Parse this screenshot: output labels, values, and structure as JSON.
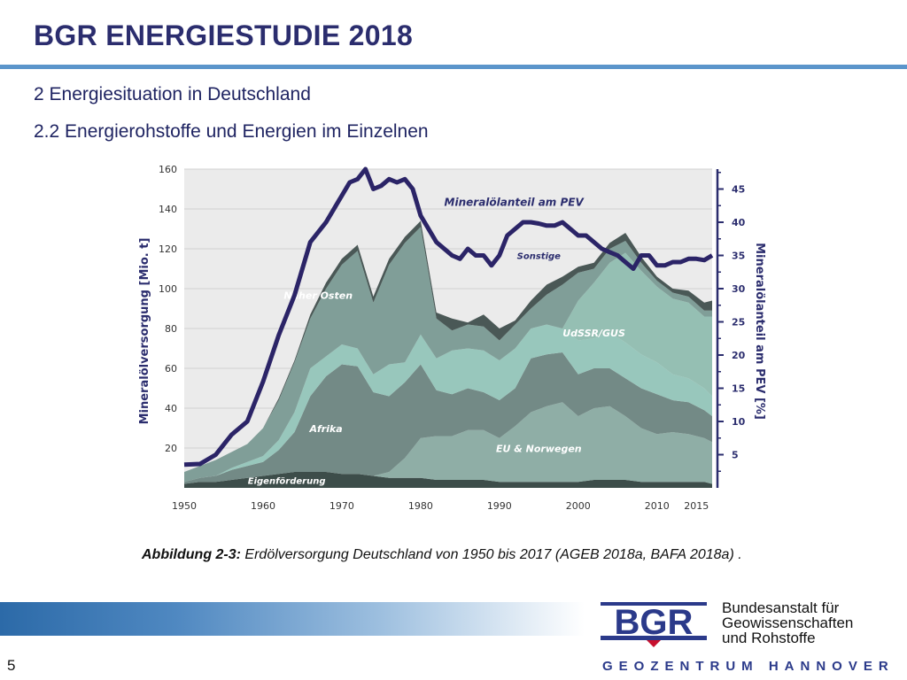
{
  "slide": {
    "title": "BGR ENERGIESTUDIE 2018",
    "heading1": "2 Energiesituation in Deutschland",
    "heading2": "2.2 Energierohstoffe und Energien im Einzelnen",
    "caption_bold": "Abbildung 2-3:",
    "caption_text": " Erdölversorgung Deutschland von 1950 bis 2017 (AGEB 2018a, BAFA 2018a) .",
    "page_number": "5"
  },
  "footer": {
    "logo_text": "BGR",
    "org_line1": "Bundesanstalt für",
    "org_line2": "Geowissenschaften",
    "org_line3": "und Rohstoffe",
    "geozentrum": "GEOZENTRUM HANNOVER"
  },
  "colors": {
    "title": "#2b2d6e",
    "rule": "#5b95cb",
    "line": "#2b2467",
    "axis_text": "#2b2d6e",
    "plot_bg": "#ebebeb"
  },
  "chart_data": {
    "type": "area",
    "stacked": true,
    "x": [
      1950,
      1952,
      1954,
      1956,
      1958,
      1960,
      1962,
      1964,
      1966,
      1968,
      1970,
      1972,
      1974,
      1976,
      1978,
      1980,
      1982,
      1984,
      1986,
      1988,
      1990,
      1992,
      1994,
      1996,
      1998,
      2000,
      2002,
      2004,
      2006,
      2008,
      2010,
      2012,
      2014,
      2016,
      2017
    ],
    "ylabel": "Mineralölversorgung [Mio. t]",
    "ylim": [
      0,
      160
    ],
    "yticks": [
      20,
      40,
      60,
      80,
      100,
      120,
      140,
      160
    ],
    "xticks": [
      "1950",
      "1960",
      "1970",
      "1980",
      "1990",
      "2000",
      "2010",
      "2015"
    ],
    "xtick_values": [
      1950,
      1960,
      1970,
      1980,
      1990,
      2000,
      2010,
      2015
    ],
    "series": [
      {
        "name": "Eigenförderung",
        "color": "#3d4d4a",
        "values": [
          2,
          3,
          3,
          4,
          5,
          6,
          7,
          8,
          8,
          8,
          7,
          7,
          6,
          5,
          5,
          5,
          4,
          4,
          4,
          4,
          3,
          3,
          3,
          3,
          3,
          3,
          4,
          4,
          4,
          3,
          3,
          3,
          3,
          3,
          2
        ]
      },
      {
        "name": "EU & Norwegen",
        "color": "#8faea6",
        "values": [
          0,
          0,
          0,
          0,
          0,
          0,
          0,
          0,
          0,
          0,
          0,
          0,
          0,
          3,
          10,
          20,
          22,
          22,
          25,
          25,
          22,
          28,
          35,
          38,
          40,
          33,
          36,
          37,
          32,
          27,
          24,
          25,
          24,
          22,
          21
        ]
      },
      {
        "name": "Afrika",
        "color": "#738a86",
        "values": [
          1,
          2,
          3,
          5,
          6,
          7,
          12,
          20,
          38,
          48,
          55,
          54,
          42,
          38,
          38,
          37,
          23,
          21,
          21,
          19,
          19,
          19,
          27,
          26,
          25,
          21,
          20,
          19,
          19,
          20,
          20,
          16,
          16,
          14,
          13
        ]
      },
      {
        "name": "",
        "color": "#98c7bc",
        "values": [
          0,
          0,
          0,
          1,
          2,
          3,
          5,
          10,
          14,
          10,
          10,
          9,
          9,
          16,
          10,
          15,
          16,
          22,
          20,
          21,
          20,
          20,
          15,
          15,
          12,
          17,
          15,
          18,
          18,
          17,
          16,
          13,
          12,
          11,
          10
        ]
      },
      {
        "name": "UdSSR/GUS",
        "color": "#95bfb3",
        "values": [
          0,
          0,
          0,
          0,
          0,
          0,
          0,
          0,
          0,
          0,
          0,
          0,
          0,
          0,
          0,
          0,
          0,
          0,
          0,
          0,
          0,
          0,
          0,
          0,
          0,
          20,
          28,
          35,
          45,
          42,
          38,
          38,
          38,
          36,
          40
        ]
      },
      {
        "name": "Naher Osten",
        "color": "#809e98",
        "values": [
          5,
          6,
          8,
          8,
          9,
          14,
          20,
          25,
          25,
          34,
          40,
          49,
          36,
          50,
          60,
          54,
          20,
          10,
          12,
          12,
          10,
          12,
          10,
          15,
          22,
          14,
          7,
          7,
          6,
          4,
          3,
          3,
          3,
          3,
          3
        ]
      },
      {
        "name": "Sonstige",
        "color": "#4a5856",
        "values": [
          0,
          0,
          0,
          0,
          0,
          0,
          1,
          1,
          2,
          3,
          3,
          3,
          3,
          3,
          3,
          3,
          3,
          6,
          1,
          6,
          6,
          2,
          4,
          5,
          4,
          3,
          3,
          3,
          4,
          3,
          2,
          2,
          3,
          4,
          5
        ]
      }
    ],
    "area_labels": [
      {
        "text": "Naher Osten",
        "x": 1967,
        "y": 95
      },
      {
        "text": "UdSSR/GUS",
        "x": 2002,
        "y": 76
      },
      {
        "text": "Afrika",
        "x": 1968,
        "y": 28
      },
      {
        "text": "EU & Norwegen",
        "x": 1995,
        "y": 18
      },
      {
        "text": "Sonstige",
        "x": 1995,
        "y": 115
      },
      {
        "text": "Eigenförderung",
        "x": 1963,
        "y": 2
      }
    ],
    "line": {
      "name": "Mineralölanteil am PEV",
      "label_x": 1983,
      "label_y": 42.5,
      "ylabel": "Mineralölanteil am PEV [%]",
      "ylim": [
        0,
        48
      ],
      "yticks": [
        5,
        10,
        15,
        20,
        25,
        30,
        35,
        40,
        45
      ],
      "x": [
        1950,
        1952,
        1954,
        1956,
        1958,
        1960,
        1962,
        1964,
        1966,
        1968,
        1970,
        1971,
        1972,
        1973,
        1974,
        1975,
        1976,
        1977,
        1978,
        1979,
        1980,
        1982,
        1984,
        1985,
        1986,
        1987,
        1988,
        1989,
        1990,
        1991,
        1992,
        1993,
        1994,
        1995,
        1996,
        1997,
        1998,
        1999,
        2000,
        2001,
        2002,
        2003,
        2004,
        2005,
        2006,
        2007,
        2008,
        2009,
        2010,
        2011,
        2012,
        2013,
        2014,
        2015,
        2016,
        2017
      ],
      "values": [
        3.5,
        3.6,
        5,
        8,
        10,
        16,
        23,
        29,
        37,
        40,
        44,
        46,
        46.5,
        48,
        45,
        45.5,
        46.5,
        46,
        46.5,
        45,
        41,
        37,
        35,
        34.5,
        36,
        35,
        35,
        33.5,
        35,
        38,
        39,
        40,
        40,
        39.8,
        39.5,
        39.5,
        40,
        39,
        38,
        38,
        37,
        36,
        35.5,
        35,
        34,
        33,
        35,
        35,
        33.5,
        33.5,
        34,
        34,
        34.5,
        34.5,
        34.3,
        35
      ]
    }
  }
}
